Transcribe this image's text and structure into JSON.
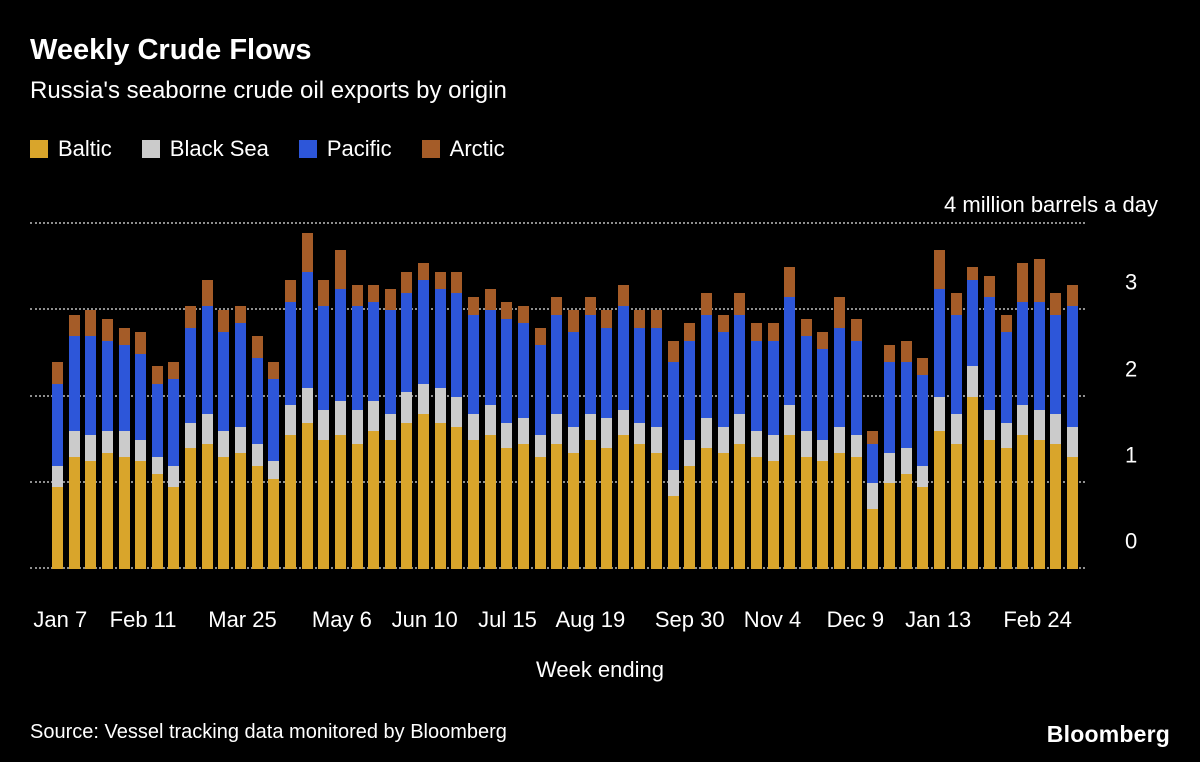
{
  "header": {
    "title": "Weekly Crude Flows",
    "subtitle": "Russia's seaborne crude oil exports by origin"
  },
  "legend": [
    {
      "label": "Baltic",
      "color": "#D9A52B"
    },
    {
      "label": "Black Sea",
      "color": "#CBCBCB"
    },
    {
      "label": "Pacific",
      "color": "#2D56D9"
    },
    {
      "label": "Arctic",
      "color": "#A55C28"
    }
  ],
  "chart_data": {
    "type": "bar",
    "stacked": true,
    "title": "Weekly Crude Flows",
    "subtitle": "Russia's seaborne crude oil exports by origin",
    "unit_note": "4 million barrels a day",
    "xlabel": "Week ending",
    "ylabel": "million barrels a day",
    "ylim": [
      0,
      4
    ],
    "yticks": [
      0,
      1,
      2,
      3
    ],
    "grid": "dotted-horizontal",
    "legend_position": "top",
    "x_tick_labels": [
      {
        "label": "Jan 7",
        "index": 0
      },
      {
        "label": "Feb 11",
        "index": 5
      },
      {
        "label": "Mar 25",
        "index": 11
      },
      {
        "label": "May 6",
        "index": 17
      },
      {
        "label": "Jun 10",
        "index": 22
      },
      {
        "label": "Jul 15",
        "index": 27
      },
      {
        "label": "Aug 19",
        "index": 32
      },
      {
        "label": "Sep 30",
        "index": 38
      },
      {
        "label": "Nov 4",
        "index": 43
      },
      {
        "label": "Dec 9",
        "index": 48
      },
      {
        "label": "Jan 13",
        "index": 53
      },
      {
        "label": "Feb 24",
        "index": 59
      }
    ],
    "series": [
      {
        "name": "Baltic",
        "color": "#D9A52B",
        "values": [
          0.95,
          1.3,
          1.25,
          1.35,
          1.3,
          1.25,
          1.1,
          0.95,
          1.4,
          1.45,
          1.3,
          1.35,
          1.2,
          1.05,
          1.55,
          1.7,
          1.5,
          1.55,
          1.45,
          1.6,
          1.5,
          1.7,
          1.8,
          1.7,
          1.65,
          1.5,
          1.55,
          1.4,
          1.45,
          1.3,
          1.45,
          1.35,
          1.5,
          1.4,
          1.55,
          1.45,
          1.35,
          0.85,
          1.2,
          1.4,
          1.35,
          1.45,
          1.3,
          1.25,
          1.55,
          1.3,
          1.25,
          1.35,
          1.3,
          0.7,
          1.0,
          1.1,
          0.95,
          1.6,
          1.45,
          2.0,
          1.5,
          1.4,
          1.55,
          1.5,
          1.45,
          1.3
        ]
      },
      {
        "name": "Black Sea",
        "color": "#CBCBCB",
        "values": [
          0.25,
          0.3,
          0.3,
          0.25,
          0.3,
          0.25,
          0.2,
          0.25,
          0.3,
          0.35,
          0.3,
          0.3,
          0.25,
          0.2,
          0.35,
          0.4,
          0.35,
          0.4,
          0.4,
          0.35,
          0.3,
          0.35,
          0.35,
          0.4,
          0.35,
          0.3,
          0.35,
          0.3,
          0.3,
          0.25,
          0.35,
          0.3,
          0.3,
          0.35,
          0.3,
          0.25,
          0.3,
          0.3,
          0.3,
          0.35,
          0.3,
          0.35,
          0.3,
          0.3,
          0.35,
          0.3,
          0.25,
          0.3,
          0.25,
          0.3,
          0.35,
          0.3,
          0.25,
          0.4,
          0.35,
          0.35,
          0.35,
          0.3,
          0.35,
          0.35,
          0.35,
          0.35
        ]
      },
      {
        "name": "Pacific",
        "color": "#2D56D9",
        "values": [
          0.95,
          1.1,
          1.15,
          1.05,
          1.0,
          1.0,
          0.85,
          1.0,
          1.1,
          1.25,
          1.15,
          1.2,
          1.0,
          0.95,
          1.2,
          1.35,
          1.2,
          1.3,
          1.2,
          1.15,
          1.2,
          1.15,
          1.2,
          1.15,
          1.2,
          1.15,
          1.1,
          1.2,
          1.1,
          1.05,
          1.15,
          1.1,
          1.15,
          1.05,
          1.2,
          1.1,
          1.15,
          1.25,
          1.15,
          1.2,
          1.1,
          1.15,
          1.05,
          1.1,
          1.25,
          1.1,
          1.05,
          1.15,
          1.1,
          0.45,
          1.05,
          1.0,
          1.05,
          1.25,
          1.15,
          1.0,
          1.3,
          1.05,
          1.2,
          1.25,
          1.15,
          1.4
        ]
      },
      {
        "name": "Arctic",
        "color": "#A55C28",
        "values": [
          0.25,
          0.25,
          0.3,
          0.25,
          0.2,
          0.25,
          0.2,
          0.2,
          0.25,
          0.3,
          0.25,
          0.2,
          0.25,
          0.2,
          0.25,
          0.45,
          0.3,
          0.45,
          0.25,
          0.2,
          0.25,
          0.25,
          0.2,
          0.2,
          0.25,
          0.2,
          0.25,
          0.2,
          0.2,
          0.2,
          0.2,
          0.25,
          0.2,
          0.2,
          0.25,
          0.2,
          0.2,
          0.25,
          0.2,
          0.25,
          0.2,
          0.25,
          0.2,
          0.2,
          0.35,
          0.2,
          0.2,
          0.35,
          0.25,
          0.15,
          0.2,
          0.25,
          0.2,
          0.45,
          0.25,
          0.15,
          0.25,
          0.2,
          0.45,
          0.5,
          0.25,
          0.25
        ]
      }
    ]
  },
  "footer": {
    "source": "Source: Vessel tracking data monitored by Bloomberg",
    "logo": "Bloomberg"
  }
}
